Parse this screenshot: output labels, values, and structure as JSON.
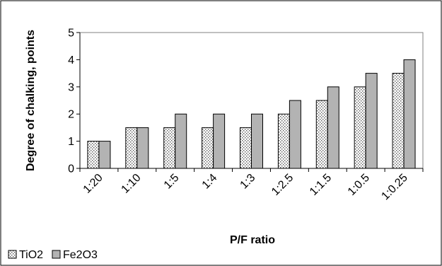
{
  "chart_data": {
    "type": "bar",
    "title": "",
    "xlabel": "P/F ratio",
    "ylabel": "Degree of chalking, points",
    "categories": [
      "1:20",
      "1:10",
      "1:5",
      "1:4",
      "1:3",
      "1:2.5",
      "1:1.5",
      "1:0.5",
      "1:0.25"
    ],
    "ylim": [
      0,
      5
    ],
    "yticks": [
      "0",
      "1",
      "2",
      "3",
      "4",
      "5"
    ],
    "grid": false,
    "legend_position": "bottom-left",
    "series": [
      {
        "name": "TiO2",
        "values": [
          1,
          1.5,
          1.5,
          1.5,
          1.5,
          2,
          2.5,
          3,
          3.5
        ],
        "color": "#ffffff",
        "pattern": "dotted"
      },
      {
        "name": "Fe2O3",
        "values": [
          1,
          1.5,
          2,
          2,
          2,
          2.5,
          3,
          3.5,
          4
        ],
        "color": "#b3b3b3",
        "pattern": "solid"
      }
    ]
  }
}
